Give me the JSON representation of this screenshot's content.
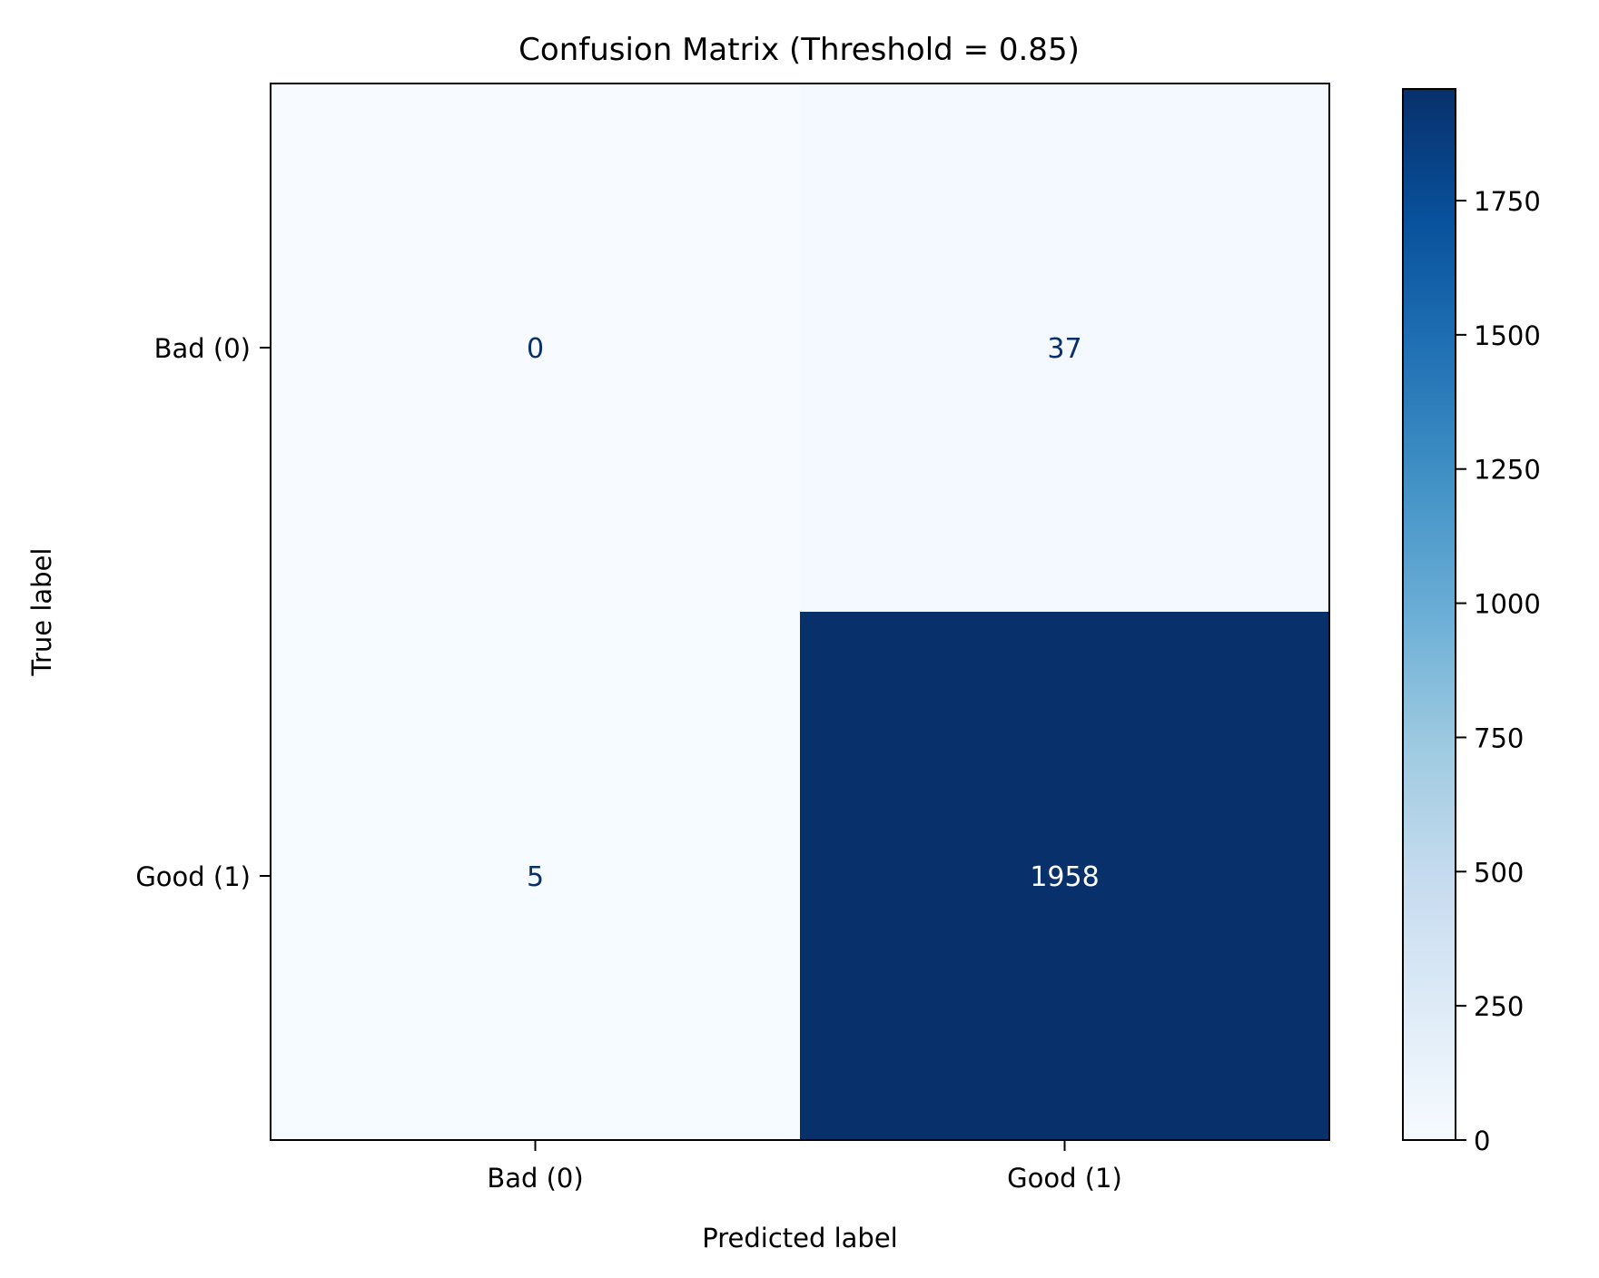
{
  "chart_data": {
    "type": "heatmap",
    "title": "Confusion Matrix (Threshold = 0.85)",
    "xlabel": "Predicted label",
    "ylabel": "True label",
    "x_categories": [
      "Bad (0)",
      "Good (1)"
    ],
    "y_categories": [
      "Bad (0)",
      "Good (1)"
    ],
    "values": [
      [
        0,
        37
      ],
      [
        5,
        1958
      ]
    ],
    "colormap": "Blues",
    "colorbar": {
      "range": [
        0,
        1958
      ],
      "ticks": [
        0,
        250,
        500,
        750,
        1000,
        1250,
        1500,
        1750
      ],
      "position": "right"
    },
    "colors": {
      "low": "#f7fbff",
      "high": "#08306b",
      "text_on_light": "#08306b",
      "text_on_dark": "#ffffff"
    }
  }
}
